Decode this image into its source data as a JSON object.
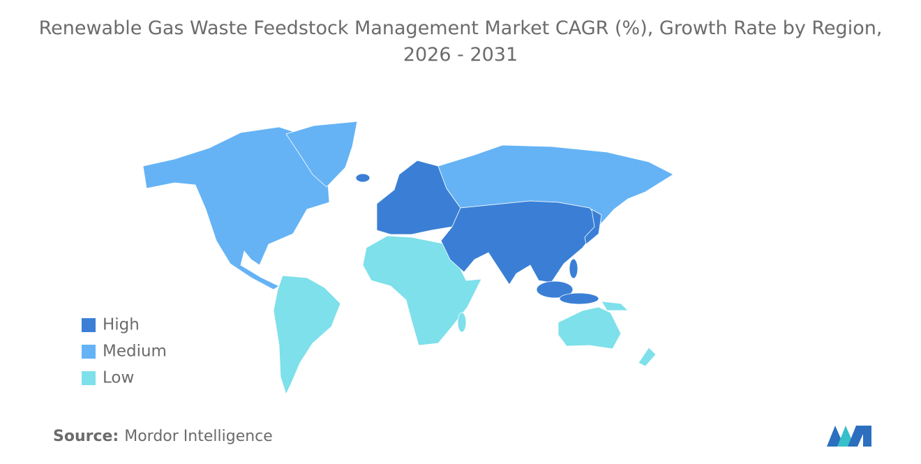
{
  "header": {
    "title": "Renewable Gas Waste Feedstock Management Market CAGR (%), Growth Rate by Region, 2026 - 2031"
  },
  "legend": {
    "items": [
      {
        "name": "High",
        "color": "#3a7fd5"
      },
      {
        "name": "Medium",
        "color": "#65b3f5"
      },
      {
        "name": "Low",
        "color": "#7ee0ea"
      }
    ]
  },
  "footer": {
    "source_label": "Source:",
    "source": "Mordor Intelligence"
  }
}
